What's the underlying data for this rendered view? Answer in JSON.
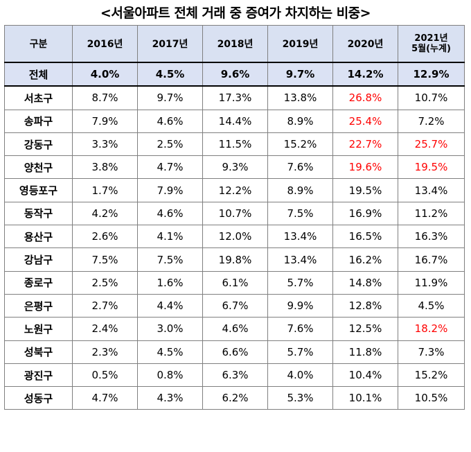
{
  "title": "<서울아파트 전체 거래 중 증여가 차지하는 비중>",
  "chart_data": {
    "type": "table",
    "columns": [
      "구분",
      "2016년",
      "2017년",
      "2018년",
      "2019년",
      "2020년",
      "2021년\n5월(누계)"
    ],
    "rows": [
      {
        "label": "전체",
        "values": [
          "4.0%",
          "4.5%",
          "9.6%",
          "9.7%",
          "14.2%",
          "12.9%"
        ],
        "red": []
      },
      {
        "label": "서초구",
        "values": [
          "8.7%",
          "9.7%",
          "17.3%",
          "13.8%",
          "26.8%",
          "10.7%"
        ],
        "red": [
          4
        ]
      },
      {
        "label": "송파구",
        "values": [
          "7.9%",
          "4.6%",
          "14.4%",
          "8.9%",
          "25.4%",
          "7.2%"
        ],
        "red": [
          4
        ]
      },
      {
        "label": "강동구",
        "values": [
          "3.3%",
          "2.5%",
          "11.5%",
          "15.2%",
          "22.7%",
          "25.7%"
        ],
        "red": [
          4,
          5
        ]
      },
      {
        "label": "양천구",
        "values": [
          "3.8%",
          "4.7%",
          "9.3%",
          "7.6%",
          "19.6%",
          "19.5%"
        ],
        "red": [
          4,
          5
        ]
      },
      {
        "label": "영등포구",
        "values": [
          "1.7%",
          "7.9%",
          "12.2%",
          "8.9%",
          "19.5%",
          "13.4%"
        ],
        "red": []
      },
      {
        "label": "동작구",
        "values": [
          "4.2%",
          "4.6%",
          "10.7%",
          "7.5%",
          "16.9%",
          "11.2%"
        ],
        "red": []
      },
      {
        "label": "용산구",
        "values": [
          "2.6%",
          "4.1%",
          "12.0%",
          "13.4%",
          "16.5%",
          "16.3%"
        ],
        "red": []
      },
      {
        "label": "강남구",
        "values": [
          "7.5%",
          "7.5%",
          "19.8%",
          "13.4%",
          "16.2%",
          "16.7%"
        ],
        "red": []
      },
      {
        "label": "종로구",
        "values": [
          "2.5%",
          "1.6%",
          "6.1%",
          "5.7%",
          "14.8%",
          "11.9%"
        ],
        "red": []
      },
      {
        "label": "은평구",
        "values": [
          "2.7%",
          "4.4%",
          "6.7%",
          "9.9%",
          "12.8%",
          "4.5%"
        ],
        "red": []
      },
      {
        "label": "노원구",
        "values": [
          "2.4%",
          "3.0%",
          "4.6%",
          "7.6%",
          "12.5%",
          "18.2%"
        ],
        "red": [
          5
        ]
      },
      {
        "label": "성북구",
        "values": [
          "2.3%",
          "4.5%",
          "6.6%",
          "5.7%",
          "11.8%",
          "7.3%"
        ],
        "red": []
      },
      {
        "label": "광진구",
        "values": [
          "0.5%",
          "0.8%",
          "6.3%",
          "4.0%",
          "10.4%",
          "15.2%"
        ],
        "red": []
      },
      {
        "label": "성동구",
        "values": [
          "4.7%",
          "4.3%",
          "6.2%",
          "5.3%",
          "10.1%",
          "10.5%"
        ],
        "red": []
      }
    ]
  },
  "colors": {
    "header_bg": "#d9e1f2",
    "total_bg": "#dbe2f4",
    "highlight": "#ff0000",
    "border": "#7f7f7f"
  }
}
